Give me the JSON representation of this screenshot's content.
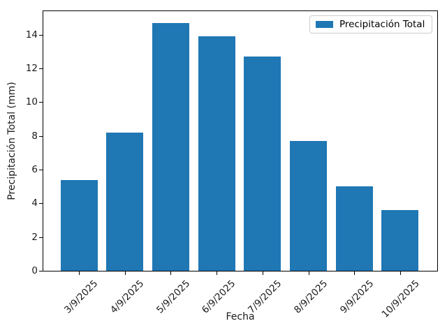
{
  "chart_data": {
    "type": "bar",
    "title": "",
    "xlabel": "Fecha",
    "ylabel": "Precipitación Total (mm)",
    "categories": [
      "3/9/2025",
      "4/9/2025",
      "5/9/2025",
      "6/9/2025",
      "7/9/2025",
      "8/9/2025",
      "9/9/2025",
      "10/9/2025"
    ],
    "series": [
      {
        "name": "Precipitación Total",
        "values": [
          5.4,
          8.2,
          14.7,
          13.9,
          12.7,
          7.7,
          5.0,
          3.6
        ]
      }
    ],
    "bar_color": "#1f77b4",
    "ylim": [
      0,
      15.44
    ],
    "yticks": [
      0,
      2,
      4,
      6,
      8,
      10,
      12,
      14
    ],
    "x_tick_rotation_deg": 45,
    "grid": false,
    "legend": {
      "position": "upper right",
      "entries": [
        "Precipitación Total"
      ],
      "border_color": "#cccccc"
    }
  }
}
